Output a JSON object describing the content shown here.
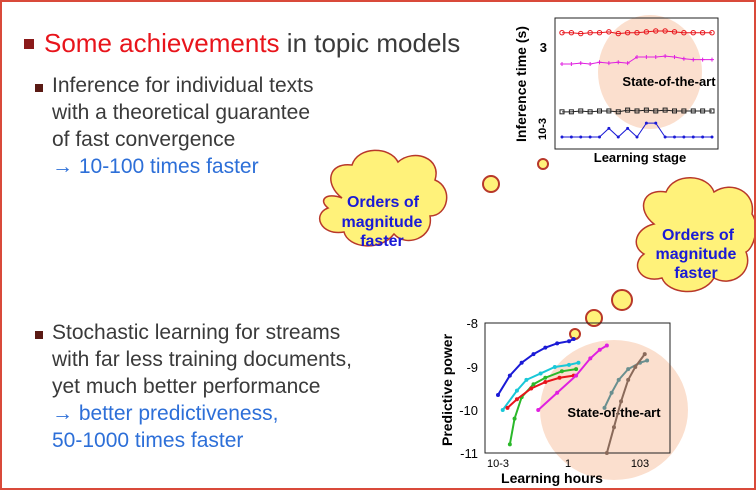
{
  "title": {
    "prefix": "",
    "highlight": "Some achievements",
    "suffix": " in topic models"
  },
  "points": [
    {
      "lines": [
        "Inference for individual texts",
        "with a theoretical guarantee",
        "of fast convergence"
      ],
      "result": "→ 10-100 times faster"
    },
    {
      "lines": [
        "Stochastic learning for streams",
        "with far less training documents,",
        "yet much better performance"
      ],
      "result": [
        "→ better predictiveness,",
        "50-1000 times faster"
      ]
    }
  ],
  "clouds": [
    {
      "lines": [
        "Orders of",
        "magnitude",
        "faster"
      ]
    },
    {
      "lines": [
        "Orders of",
        "magnitude",
        "faster"
      ]
    }
  ],
  "colors": {
    "border": "#d94a3a",
    "highlight": "#e8141b",
    "blue": "#2d6fd8",
    "cloud_fill": "#fff27a",
    "cloud_text": "#1a1ad6",
    "sota_fill": "#fbdcc9"
  },
  "chart_data": [
    {
      "type": "line",
      "xlabel": "Learning stage",
      "ylabel": "Inference time (s)",
      "ytick_labels": [
        "3",
        "10-3"
      ],
      "annotation": "State-of-the-art",
      "series": [
        {
          "color": "#e8141b",
          "marker": "circle",
          "values": [
            3.0,
            3.0,
            2.95,
            3.0,
            3.0,
            3.05,
            2.95,
            3.0,
            3.0,
            3.05,
            3.1,
            3.1,
            3.05,
            3.0,
            3.0,
            3.0,
            3.0
          ]
        },
        {
          "color": "#e020e0",
          "marker": "plus",
          "values": [
            1.2,
            1.2,
            1.25,
            1.2,
            1.3,
            1.25,
            1.3,
            1.25,
            1.6,
            1.6,
            1.6,
            1.65,
            1.6,
            1.5,
            1.45,
            1.45,
            1.45
          ]
        },
        {
          "color": "#222222",
          "marker": "square",
          "values": [
            -1.55,
            -1.55,
            -1.5,
            -1.55,
            -1.5,
            -1.5,
            -1.55,
            -1.45,
            -1.5,
            -1.45,
            -1.5,
            -1.45,
            -1.5,
            -1.5,
            -1.5,
            -1.5,
            -1.5
          ]
        },
        {
          "color": "#1a1ad6",
          "marker": "dot",
          "values": [
            -3.0,
            -3.0,
            -3.0,
            -3.0,
            -3.0,
            -2.5,
            -3.0,
            -2.5,
            -3.0,
            -2.2,
            -2.2,
            -3.0,
            -3.0,
            -3.0,
            -3.0,
            -3.0,
            -3.0
          ]
        }
      ]
    },
    {
      "type": "line",
      "xlabel": "Learning hours",
      "ylabel": "Predictive power",
      "ytick_labels": [
        "-8",
        "-9",
        "-10",
        "-11"
      ],
      "xtick_labels": [
        "10-3",
        "1",
        "103"
      ],
      "annotation": "State-of-the-art",
      "series": [
        {
          "color": "#1a1ad6",
          "points": [
            [
              -3,
              -9.65
            ],
            [
              -2.5,
              -9.2
            ],
            [
              -2,
              -8.9
            ],
            [
              -1.5,
              -8.7
            ],
            [
              -1,
              -8.55
            ],
            [
              -0.5,
              -8.45
            ],
            [
              0,
              -8.4
            ],
            [
              0.2,
              -8.35
            ]
          ]
        },
        {
          "color": "#19c8d8",
          "points": [
            [
              -2.8,
              -10.0
            ],
            [
              -2.2,
              -9.55
            ],
            [
              -1.8,
              -9.3
            ],
            [
              -1.2,
              -9.15
            ],
            [
              -0.6,
              -9.0
            ],
            [
              0,
              -8.95
            ],
            [
              0.4,
              -8.9
            ]
          ]
        },
        {
          "color": "#2ab82a",
          "points": [
            [
              -2.5,
              -10.8
            ],
            [
              -2.3,
              -10.2
            ],
            [
              -2.0,
              -9.7
            ],
            [
              -1.5,
              -9.4
            ],
            [
              -1.0,
              -9.25
            ],
            [
              -0.3,
              -9.1
            ],
            [
              0.3,
              -9.05
            ]
          ]
        },
        {
          "color": "#e8141b",
          "points": [
            [
              -2.6,
              -9.95
            ],
            [
              -2.2,
              -9.75
            ],
            [
              -1.6,
              -9.5
            ],
            [
              -1.0,
              -9.35
            ],
            [
              -0.4,
              -9.25
            ],
            [
              0.2,
              -9.2
            ]
          ]
        },
        {
          "color": "#e020e0",
          "points": [
            [
              -1.3,
              -10.0
            ],
            [
              -0.5,
              -9.6
            ],
            [
              0.3,
              -9.2
            ],
            [
              0.9,
              -8.8
            ],
            [
              1.3,
              -8.6
            ],
            [
              1.6,
              -8.5
            ]
          ]
        },
        {
          "color": "#6a8f8f",
          "points": [
            [
              1.5,
              -9.95
            ],
            [
              1.8,
              -9.6
            ],
            [
              2.1,
              -9.3
            ],
            [
              2.5,
              -9.05
            ],
            [
              3.0,
              -8.9
            ],
            [
              3.3,
              -8.85
            ]
          ]
        },
        {
          "color": "#8a6a5a",
          "points": [
            [
              1.6,
              -11.0
            ],
            [
              1.9,
              -10.4
            ],
            [
              2.2,
              -9.8
            ],
            [
              2.5,
              -9.3
            ],
            [
              2.8,
              -9.0
            ],
            [
              3.2,
              -8.7
            ]
          ]
        }
      ]
    }
  ]
}
